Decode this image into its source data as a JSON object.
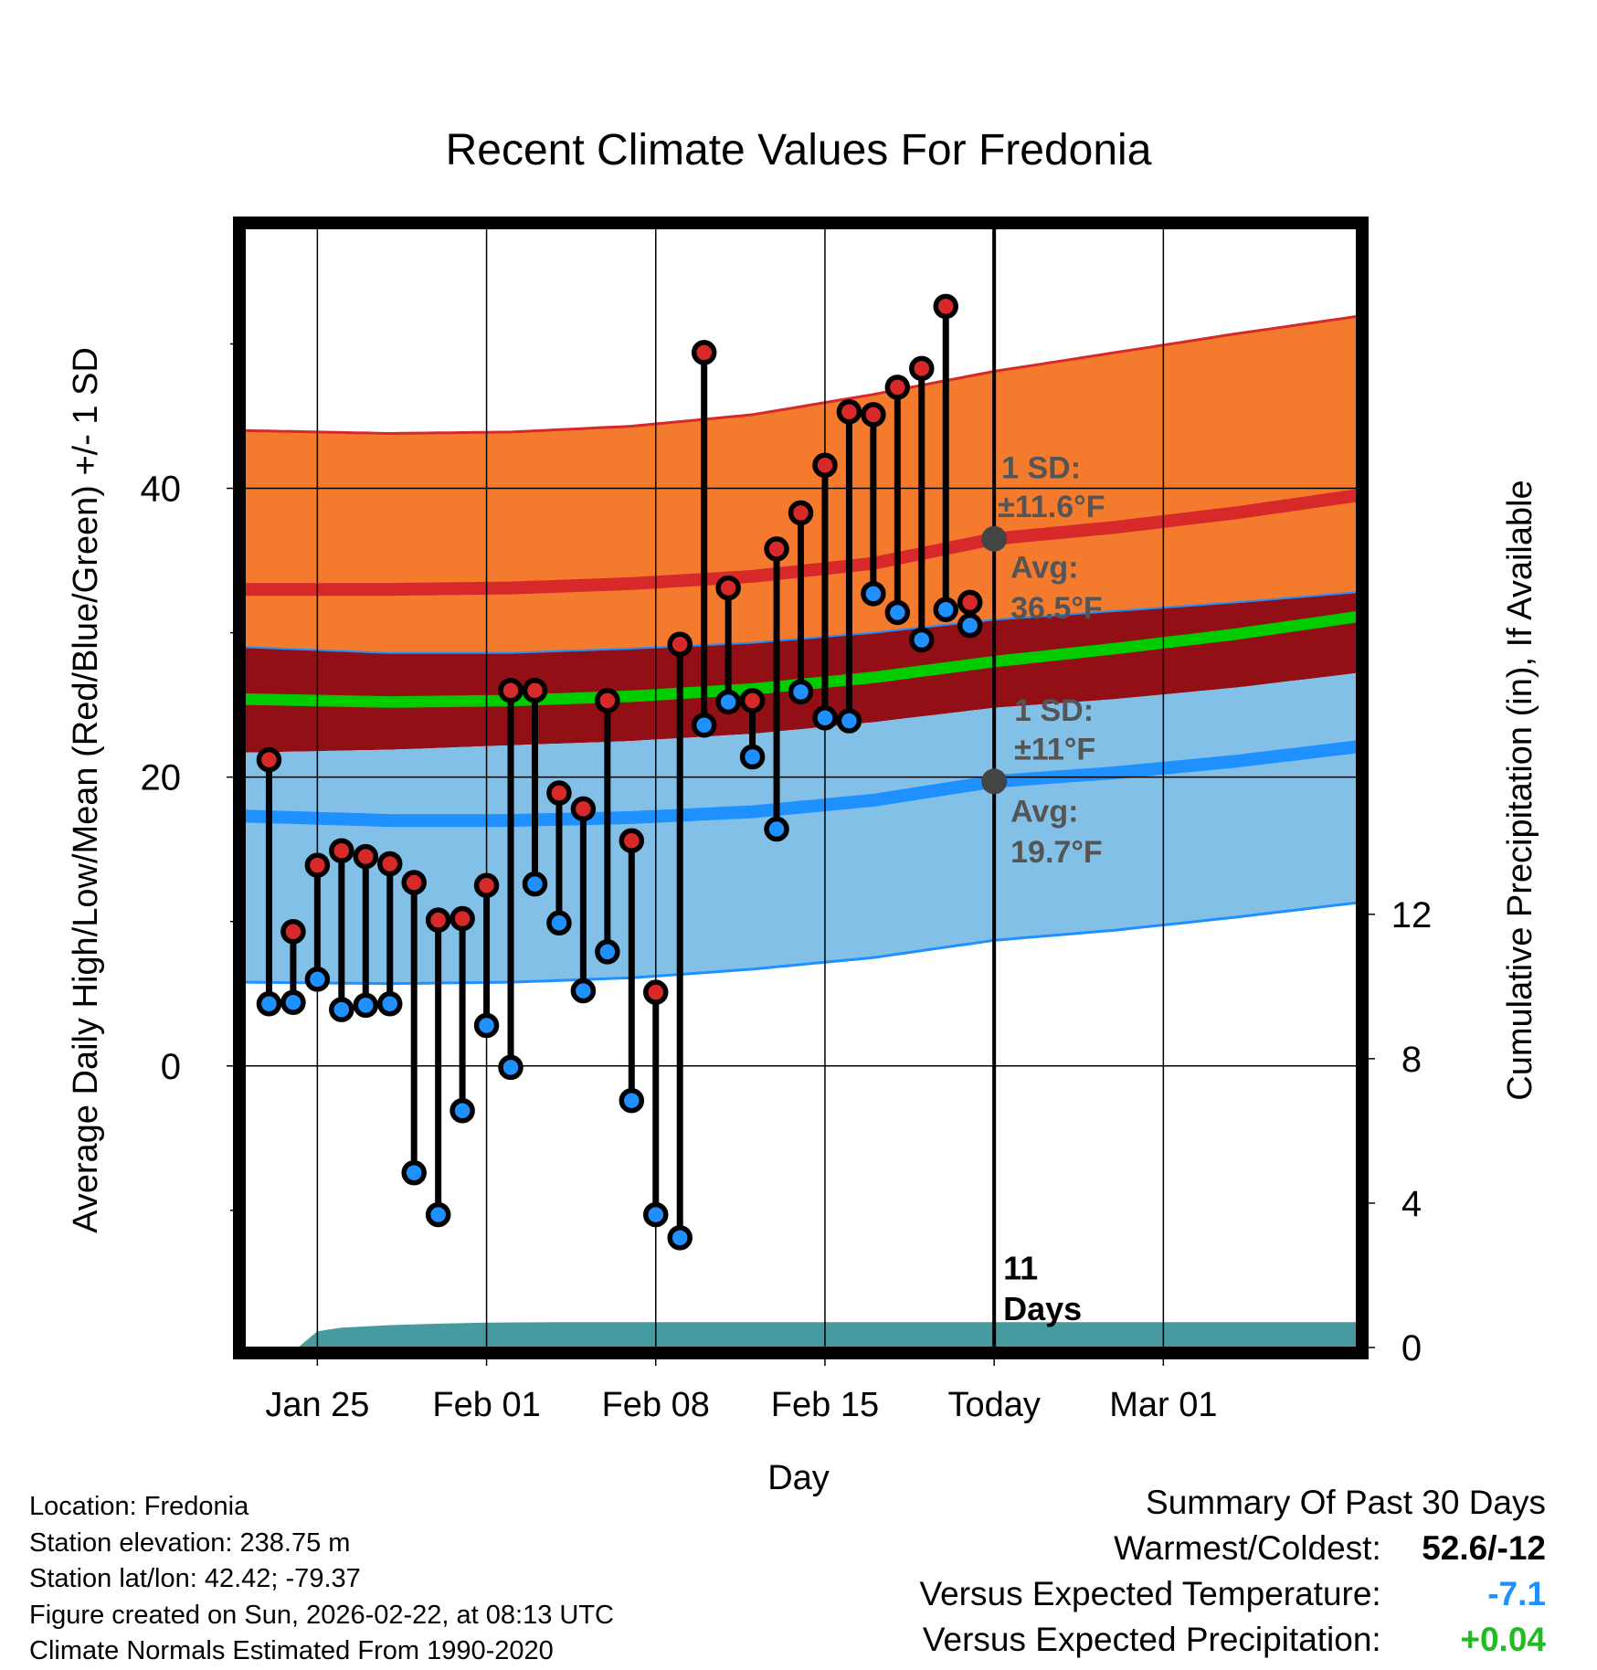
{
  "chart_data": {
    "type": "climate-band",
    "title": "Recent Climate Values For Fredonia",
    "xlabel": "Day",
    "ylabel_left": "Average Daily High/Low/Mean (Red/Blue/Green) +/- 1 SD",
    "ylabel_right": "Cumulative Precipitation (in), If Available",
    "x_range_days": [
      -1,
      45
    ],
    "ylim_temp": [
      -19.5,
      58
    ],
    "ylim_precip": [
      0,
      31
    ],
    "x_ticks": [
      {
        "day": 2,
        "label": "Jan 25"
      },
      {
        "day": 9,
        "label": "Feb 01"
      },
      {
        "day": 16,
        "label": "Feb 08"
      },
      {
        "day": 23,
        "label": "Feb 15"
      },
      {
        "day": 30,
        "label": "Today"
      },
      {
        "day": 37,
        "label": "Mar 01"
      }
    ],
    "y_ticks_temp": [
      0,
      20,
      40
    ],
    "y_minor_ticks_temp": [
      -10,
      10,
      30,
      50
    ],
    "y_ticks_precip": [
      0,
      4,
      8,
      12
    ],
    "today_day": 30,
    "normals": {
      "x": [
        -1,
        5,
        10,
        15,
        20,
        25,
        30,
        35,
        40,
        45
      ],
      "high_mean": [
        33.0,
        33.0,
        33.1,
        33.4,
        33.9,
        34.8,
        36.5,
        37.3,
        38.3,
        39.5
      ],
      "high_sd_upper": [
        44.0,
        43.8,
        43.9,
        44.3,
        45.1,
        46.5,
        48.1,
        49.4,
        50.7,
        51.9
      ],
      "high_sd_lower": [
        29.0,
        28.6,
        28.6,
        28.9,
        29.3,
        30.0,
        30.9,
        31.5,
        32.1,
        32.8
      ],
      "mean_upper": [
        25.8,
        25.6,
        25.7,
        26.0,
        26.5,
        27.3,
        28.4,
        29.3,
        30.3,
        31.5
      ],
      "mean_lower": [
        25.0,
        24.8,
        24.9,
        25.2,
        25.7,
        26.5,
        27.6,
        28.5,
        29.5,
        30.7
      ],
      "low_sd_upper": [
        21.7,
        21.9,
        22.2,
        22.5,
        23.0,
        23.8,
        24.8,
        25.4,
        26.2,
        27.2
      ],
      "low_mean": [
        17.3,
        17.0,
        17.0,
        17.2,
        17.6,
        18.4,
        19.7,
        20.3,
        21.1,
        22.1
      ],
      "low_sd_lower": [
        5.8,
        5.7,
        5.8,
        6.1,
        6.7,
        7.5,
        8.7,
        9.4,
        10.3,
        11.3
      ]
    },
    "daily": {
      "days": [
        0,
        1,
        2,
        3,
        4,
        5,
        6,
        7,
        8,
        9,
        10,
        11,
        12,
        13,
        14,
        15,
        16,
        17,
        18,
        19,
        20,
        21,
        22,
        23,
        24,
        25,
        26,
        27,
        28,
        29
      ],
      "highs": [
        21.2,
        9.3,
        13.9,
        14.9,
        14.5,
        14.0,
        12.7,
        10.1,
        10.2,
        12.5,
        26.0,
        26.0,
        18.9,
        17.8,
        25.3,
        15.6,
        5.1,
        29.2,
        49.4,
        33.1,
        25.3,
        35.8,
        38.3,
        41.6,
        45.3,
        45.1,
        47.0,
        48.3,
        52.6,
        32.1
      ],
      "lows": [
        4.3,
        4.4,
        6.0,
        3.9,
        4.2,
        4.3,
        -7.4,
        -10.3,
        -3.1,
        2.8,
        -0.1,
        12.6,
        9.9,
        5.2,
        7.9,
        -2.4,
        -10.3,
        -11.9,
        23.6,
        25.2,
        21.4,
        16.4,
        25.9,
        24.1,
        23.9,
        32.7,
        31.4,
        29.5,
        31.6,
        30.5
      ]
    },
    "precip": {
      "days": [
        0,
        1.2,
        2,
        3,
        5,
        7,
        9,
        12,
        15,
        20,
        25,
        30,
        35,
        40,
        45
      ],
      "values": [
        0,
        0,
        0.45,
        0.55,
        0.62,
        0.66,
        0.69,
        0.7,
        0.7,
        0.7,
        0.7,
        0.7,
        0.7,
        0.7,
        0.7
      ]
    },
    "annotations": {
      "high_sd": "±11.6°F",
      "high_avg": "36.5°F",
      "low_sd": "±11°F",
      "low_avg": "19.7°F",
      "sd_label": "1 SD:",
      "avg_label": "Avg:",
      "days_count": "11",
      "days_word": "Days"
    },
    "colors": {
      "high_band": "#f47b2e",
      "high_line": "#d7282a",
      "mean_band": "#930f16",
      "mean_line": "#00cc00",
      "low_band": "#82c0e8",
      "low_line": "#1e90ff",
      "precip": "#479a9f",
      "annotation": "#555555"
    }
  },
  "info": {
    "location": "Location: Fredonia",
    "elevation": "Station elevation: 238.75 m",
    "latlon": "Station lat/lon: 42.42; -79.37",
    "created": "Figure created on Sun, 2026-02-22, at 08:13 UTC",
    "normals": "Climate Normals Estimated From 1990-2020"
  },
  "summary": {
    "title": "Summary Of Past 30 Days",
    "warm_cold_label": "Warmest/Coldest:",
    "warm_cold_value": "52.6/-12",
    "temp_label": "Versus Expected Temperature:",
    "temp_value": "-7.1",
    "temp_color": "#1e90ff",
    "precip_label": "Versus Expected Precipitation:",
    "precip_value": "+0.04",
    "precip_color": "#22bb22"
  }
}
